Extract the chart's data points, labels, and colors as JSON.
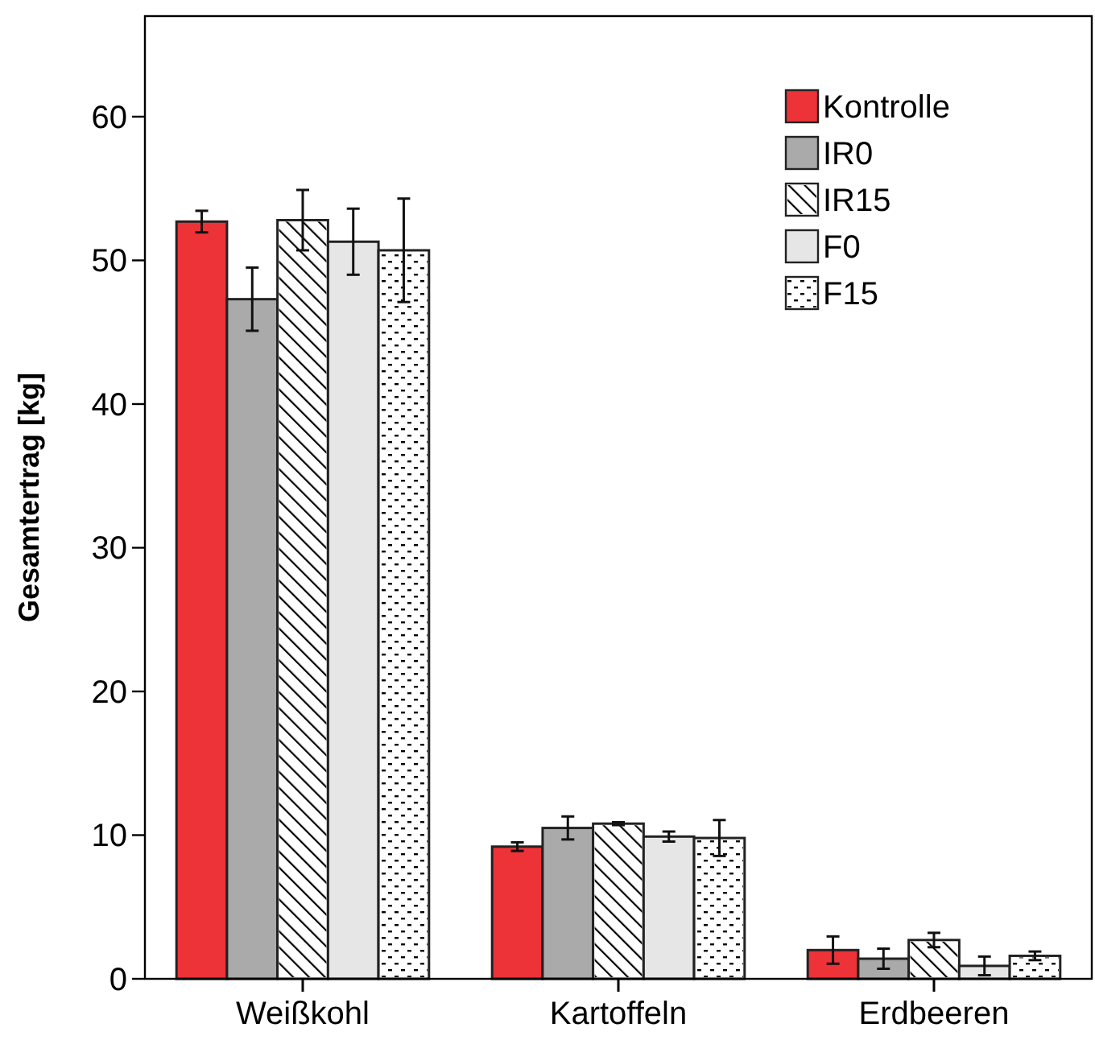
{
  "chart_data": {
    "type": "bar",
    "ylabel": "Gesamtertrag [kg]",
    "categories": [
      "Weißkohl",
      "Kartoffeln",
      "Erdbeeren"
    ],
    "series": [
      {
        "name": "Kontrolle",
        "color": "#ee3338",
        "values": [
          52.7,
          9.2,
          2.0
        ],
        "errors": [
          0.75,
          0.3,
          0.95
        ]
      },
      {
        "name": "IR0",
        "color": "#aaaaaa",
        "values": [
          47.3,
          10.5,
          1.4
        ],
        "errors": [
          2.2,
          0.8,
          0.7
        ]
      },
      {
        "name": "IR15",
        "color": "#ffffff",
        "values": [
          52.8,
          10.8,
          2.7
        ],
        "errors": [
          2.1,
          0.1,
          0.5
        ]
      },
      {
        "name": "F0",
        "color": "#e6e6e6",
        "values": [
          51.3,
          9.9,
          0.9
        ],
        "errors": [
          2.3,
          0.35,
          0.65
        ]
      },
      {
        "name": "F15",
        "color": "#ffffff",
        "values": [
          50.7,
          9.8,
          1.6
        ],
        "errors": [
          3.6,
          1.25,
          0.3
        ]
      }
    ],
    "ylim": [
      0,
      67
    ],
    "yticks": [
      0,
      10,
      20,
      30,
      40,
      50,
      60
    ],
    "grid": false,
    "legend": "top right"
  }
}
